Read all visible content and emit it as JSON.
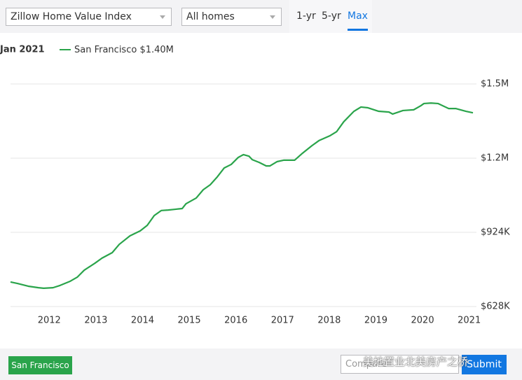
{
  "controls": {
    "metric": "Zillow Home Value Index",
    "home_type": "All homes",
    "ranges": [
      "1-yr",
      "5-yr",
      "Max"
    ],
    "selected_range": 2
  },
  "chart_data": {
    "type": "line",
    "current_date": "Jan 2021",
    "x": [
      2011.17,
      2011.32,
      2011.55,
      2011.77,
      2011.88,
      2012.08,
      2012.23,
      2012.45,
      2012.6,
      2012.75,
      2012.98,
      2013.13,
      2013.35,
      2013.5,
      2013.73,
      2013.95,
      2014.1,
      2014.25,
      2014.4,
      2014.55,
      2014.7,
      2014.85,
      2014.93,
      2015.15,
      2015.3,
      2015.45,
      2015.6,
      2015.75,
      2015.9,
      2016.05,
      2016.16,
      2016.28,
      2016.35,
      2016.5,
      2016.65,
      2016.73,
      2016.88,
      2017.03,
      2017.26,
      2017.41,
      2017.63,
      2017.78,
      2018.01,
      2018.16,
      2018.31,
      2018.53,
      2018.68,
      2018.83,
      2019.06,
      2019.28,
      2019.36,
      2019.58,
      2019.81,
      2019.96,
      2020.03,
      2020.18,
      2020.33,
      2020.56,
      2020.71,
      2020.93,
      2021.08
    ],
    "series": [
      {
        "name": "San Francisco",
        "current_label": "$1.40M",
        "color": "#2aa44b",
        "values": [
          726000,
          720000,
          709000,
          703000,
          701000,
          703000,
          712000,
          729000,
          745000,
          773000,
          801000,
          821000,
          843000,
          876000,
          910000,
          930000,
          952000,
          991000,
          1011000,
          1013000,
          1016000,
          1019000,
          1038000,
          1061000,
          1094000,
          1114000,
          1145000,
          1181000,
          1195000,
          1223000,
          1234000,
          1228000,
          1214000,
          1203000,
          1189000,
          1189000,
          1206000,
          1212000,
          1212000,
          1237000,
          1270000,
          1290000,
          1309000,
          1326000,
          1365000,
          1407000,
          1424000,
          1421000,
          1407000,
          1404000,
          1396000,
          1410000,
          1413000,
          1429000,
          1438000,
          1440000,
          1438000,
          1418000,
          1418000,
          1407000,
          1401000
        ]
      }
    ],
    "xlim": [
      2011.17,
      2021.08
    ],
    "xticks": [
      2012,
      2013,
      2014,
      2015,
      2016,
      2017,
      2018,
      2019,
      2020,
      2021
    ],
    "ylim": [
      628000,
      1516000
    ],
    "yticks": [
      {
        "value": 628000,
        "label": "$628K"
      },
      {
        "value": 924000,
        "label": "$924K"
      },
      {
        "value": 1220000,
        "label": "$1.2M"
      },
      {
        "value": 1516000,
        "label": "$1.5M"
      }
    ],
    "grid": true
  },
  "footer": {
    "region": "San Francisco",
    "compare": "Compare",
    "submit": "Submit",
    "watermark": "美地置业北美房产之桥"
  }
}
